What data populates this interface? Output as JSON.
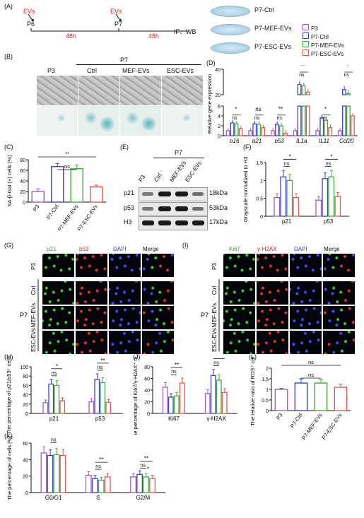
{
  "panels": {
    "A": "(A)",
    "B": "(B)",
    "C": "(C)",
    "D": "(D)",
    "E": "(E)",
    "F": "(F)",
    "G": "(G)",
    "H": "(H)",
    "I": "(I)",
    "J": "(J)",
    "K": "(K)",
    "L": "(L)"
  },
  "schematic": {
    "evs1": "EVs",
    "evs2": "EVs",
    "p6": "P6",
    "p7": "P7",
    "t1": "48h",
    "t2": "48h",
    "end": "IF、WB",
    "dishes": [
      "P7-Ctrl",
      "P7-MEF-EVs",
      "P7-ESC-EVs"
    ]
  },
  "colors": {
    "P3": "#a25bbd",
    "P7-Ctrl": "#3e3ed6",
    "P7-MEF-EVs": "#3cae3c",
    "P7-ESC-EVs": "#e05650",
    "red": "#d62020"
  },
  "legend": [
    "P3",
    "P7-Ctrl",
    "P7-MEF-EVs",
    "P7-ESC-EVs"
  ],
  "micro_B": {
    "p7": "P7",
    "cols": [
      "P3",
      "Ctrl",
      "MEF-EVs",
      "ESC-EVs"
    ]
  },
  "wb": {
    "p7": "P7",
    "lanes": [
      "P3",
      "Ctrl",
      "MEF-EVs",
      "ESC-EVs"
    ],
    "bands": [
      "p21",
      "p53",
      "H3"
    ],
    "kda": [
      "18kDa",
      "53kDa",
      "17kDa"
    ]
  },
  "if_G": {
    "channels": [
      "p21",
      "p53",
      "DAPI",
      "Merge"
    ],
    "rows": [
      "P3",
      "Ctrl",
      "MEF-EVs",
      "ESC-EVs"
    ],
    "p7": "P7"
  },
  "if_I": {
    "channels": [
      "Ki67",
      "γ-H2AX",
      "DAPI",
      "Merge"
    ],
    "rows": [
      "P3",
      "Ctrl",
      "MEF-EVs",
      "ESC-EVs"
    ],
    "p7": "P7"
  },
  "chart_data": [
    {
      "id": "C",
      "type": "bar",
      "categories": [
        "P3",
        "P7-Ctrl",
        "P7-MEF-EVs",
        "P7-ESC-EVs"
      ],
      "values": [
        20,
        67,
        63,
        29
      ],
      "errors": [
        5,
        6,
        7,
        3
      ],
      "ylabel": "SA-β-Gal (+) cells (%)",
      "ylim": [
        0,
        80
      ],
      "yticks": [
        0,
        20,
        40,
        60,
        80
      ],
      "annotations": [
        {
          "from": 1,
          "to": 2,
          "text": "ns"
        },
        {
          "from": 0,
          "to": 3,
          "text": "**"
        }
      ]
    },
    {
      "id": "D",
      "type": "bar",
      "categories": [
        "p16",
        "p21",
        "p53",
        "IL1a",
        "IL11",
        "Ccl20"
      ],
      "series": [
        {
          "name": "P3",
          "values": [
            1.0,
            1.0,
            1.0,
            1.0,
            1.0,
            1.0
          ]
        },
        {
          "name": "P7-Ctrl",
          "values": [
            2.6,
            2.4,
            2.3,
            28,
            3.6,
            24
          ]
        },
        {
          "name": "P7-MEF-EVs",
          "values": [
            2.4,
            2.3,
            2.0,
            27,
            3.1,
            21
          ]
        },
        {
          "name": "P7-ESC-EVs",
          "values": [
            1.4,
            1.6,
            0.5,
            22,
            1.6,
            4
          ]
        }
      ],
      "ylabel": "Relative gene expression",
      "yaxis_labels": [
        "0",
        "2",
        "4",
        "6",
        "20",
        "40"
      ],
      "sig": [
        "*",
        "ns",
        "**",
        "**",
        "*",
        "*"
      ],
      "ns_row": [
        "ns",
        "ns",
        "ns",
        "ns",
        "ns",
        "ns"
      ]
    },
    {
      "id": "F",
      "type": "bar",
      "categories": [
        "p21",
        "p53"
      ],
      "series": [
        {
          "name": "P3",
          "values": [
            0.52,
            0.45
          ]
        },
        {
          "name": "P7-Ctrl",
          "values": [
            1.1,
            1.05
          ]
        },
        {
          "name": "P7-MEF-EVs",
          "values": [
            1.0,
            1.1
          ]
        },
        {
          "name": "P7-ESC-EVs",
          "values": [
            0.52,
            0.55
          ]
        }
      ],
      "ylabel": "Grayscale normalized to H3",
      "ylim": [
        0,
        1.5
      ],
      "yticks": [
        0.0,
        0.5,
        1.0,
        1.5
      ],
      "sig": [
        "ns",
        "ns"
      ],
      "sig2": [
        "*",
        "*"
      ]
    },
    {
      "id": "H",
      "type": "bar",
      "categories": [
        "p21",
        "p53"
      ],
      "series": [
        {
          "name": "P3",
          "values": [
            23,
            25
          ]
        },
        {
          "name": "P7-Ctrl",
          "values": [
            63,
            73
          ]
        },
        {
          "name": "P7-MEF-EVs",
          "values": [
            60,
            66
          ]
        },
        {
          "name": "P7-ESC-EVs",
          "values": [
            27,
            24
          ]
        }
      ],
      "ylabel": "The percentage of p21/p53⁺ cells (%)",
      "ylim": [
        0,
        100
      ],
      "yticks": [
        0,
        20,
        40,
        60,
        80,
        100
      ],
      "sig": [
        "ns",
        "ns"
      ],
      "sig2": [
        "*",
        "**"
      ]
    },
    {
      "id": "J",
      "type": "bar",
      "categories": [
        "Ki67",
        "γ-H2AX"
      ],
      "series": [
        {
          "name": "P3",
          "values": [
            45,
            34
          ]
        },
        {
          "name": "P7-Ctrl",
          "values": [
            28,
            65
          ]
        },
        {
          "name": "P7-MEF-EVs",
          "values": [
            30,
            57
          ]
        },
        {
          "name": "P7-ESC-EVs",
          "values": [
            52,
            36
          ]
        }
      ],
      "ylabel": "The percentage of Ki67/γ-H2AX⁺ cells (%)",
      "ylim": [
        0,
        80
      ],
      "yticks": [
        0,
        20,
        40,
        60,
        80
      ],
      "sig": [
        "ns",
        "ns"
      ],
      "sig2": [
        "**",
        "**"
      ]
    },
    {
      "id": "L",
      "type": "bar",
      "categories": [
        "P3",
        "P7-Ctrl",
        "P7-MEF-EVs",
        "P7-ESC-EVs"
      ],
      "values": [
        1.0,
        1.3,
        1.3,
        1.1
      ],
      "errors": [
        0.05,
        0.2,
        0.18,
        0.15
      ],
      "ylabel": "The relative ratio of ROS⁺ cells",
      "ylim": [
        0,
        2.0
      ],
      "yticks": [
        0.0,
        0.5,
        1.0,
        1.5,
        2.0
      ],
      "annotations": [
        {
          "from": 1,
          "to": 2,
          "text": "ns"
        },
        {
          "from": 0,
          "to": 3,
          "text": "ns"
        }
      ]
    },
    {
      "id": "K",
      "type": "bar",
      "categories": [
        "G0/G1",
        "S",
        "G2/M"
      ],
      "series": [
        {
          "name": "P3",
          "values": [
            48,
            21,
            19
          ]
        },
        {
          "name": "P7-Ctrl",
          "values": [
            45,
            17,
            22
          ]
        },
        {
          "name": "P7-MEF-EVs",
          "values": [
            46,
            15,
            19
          ]
        },
        {
          "name": "P7-ESC-EVs",
          "values": [
            45,
            19,
            17
          ]
        }
      ],
      "ylabel": "The percentage of cells (%)",
      "ylim": [
        0,
        60
      ],
      "yticks": [
        0,
        20,
        40,
        60
      ],
      "sig": [
        "ns",
        "ns",
        "ns"
      ],
      "sig_top": [
        "ns",
        "**",
        "**"
      ],
      "sig_mid": [
        "",
        "",
        "*"
      ]
    }
  ]
}
